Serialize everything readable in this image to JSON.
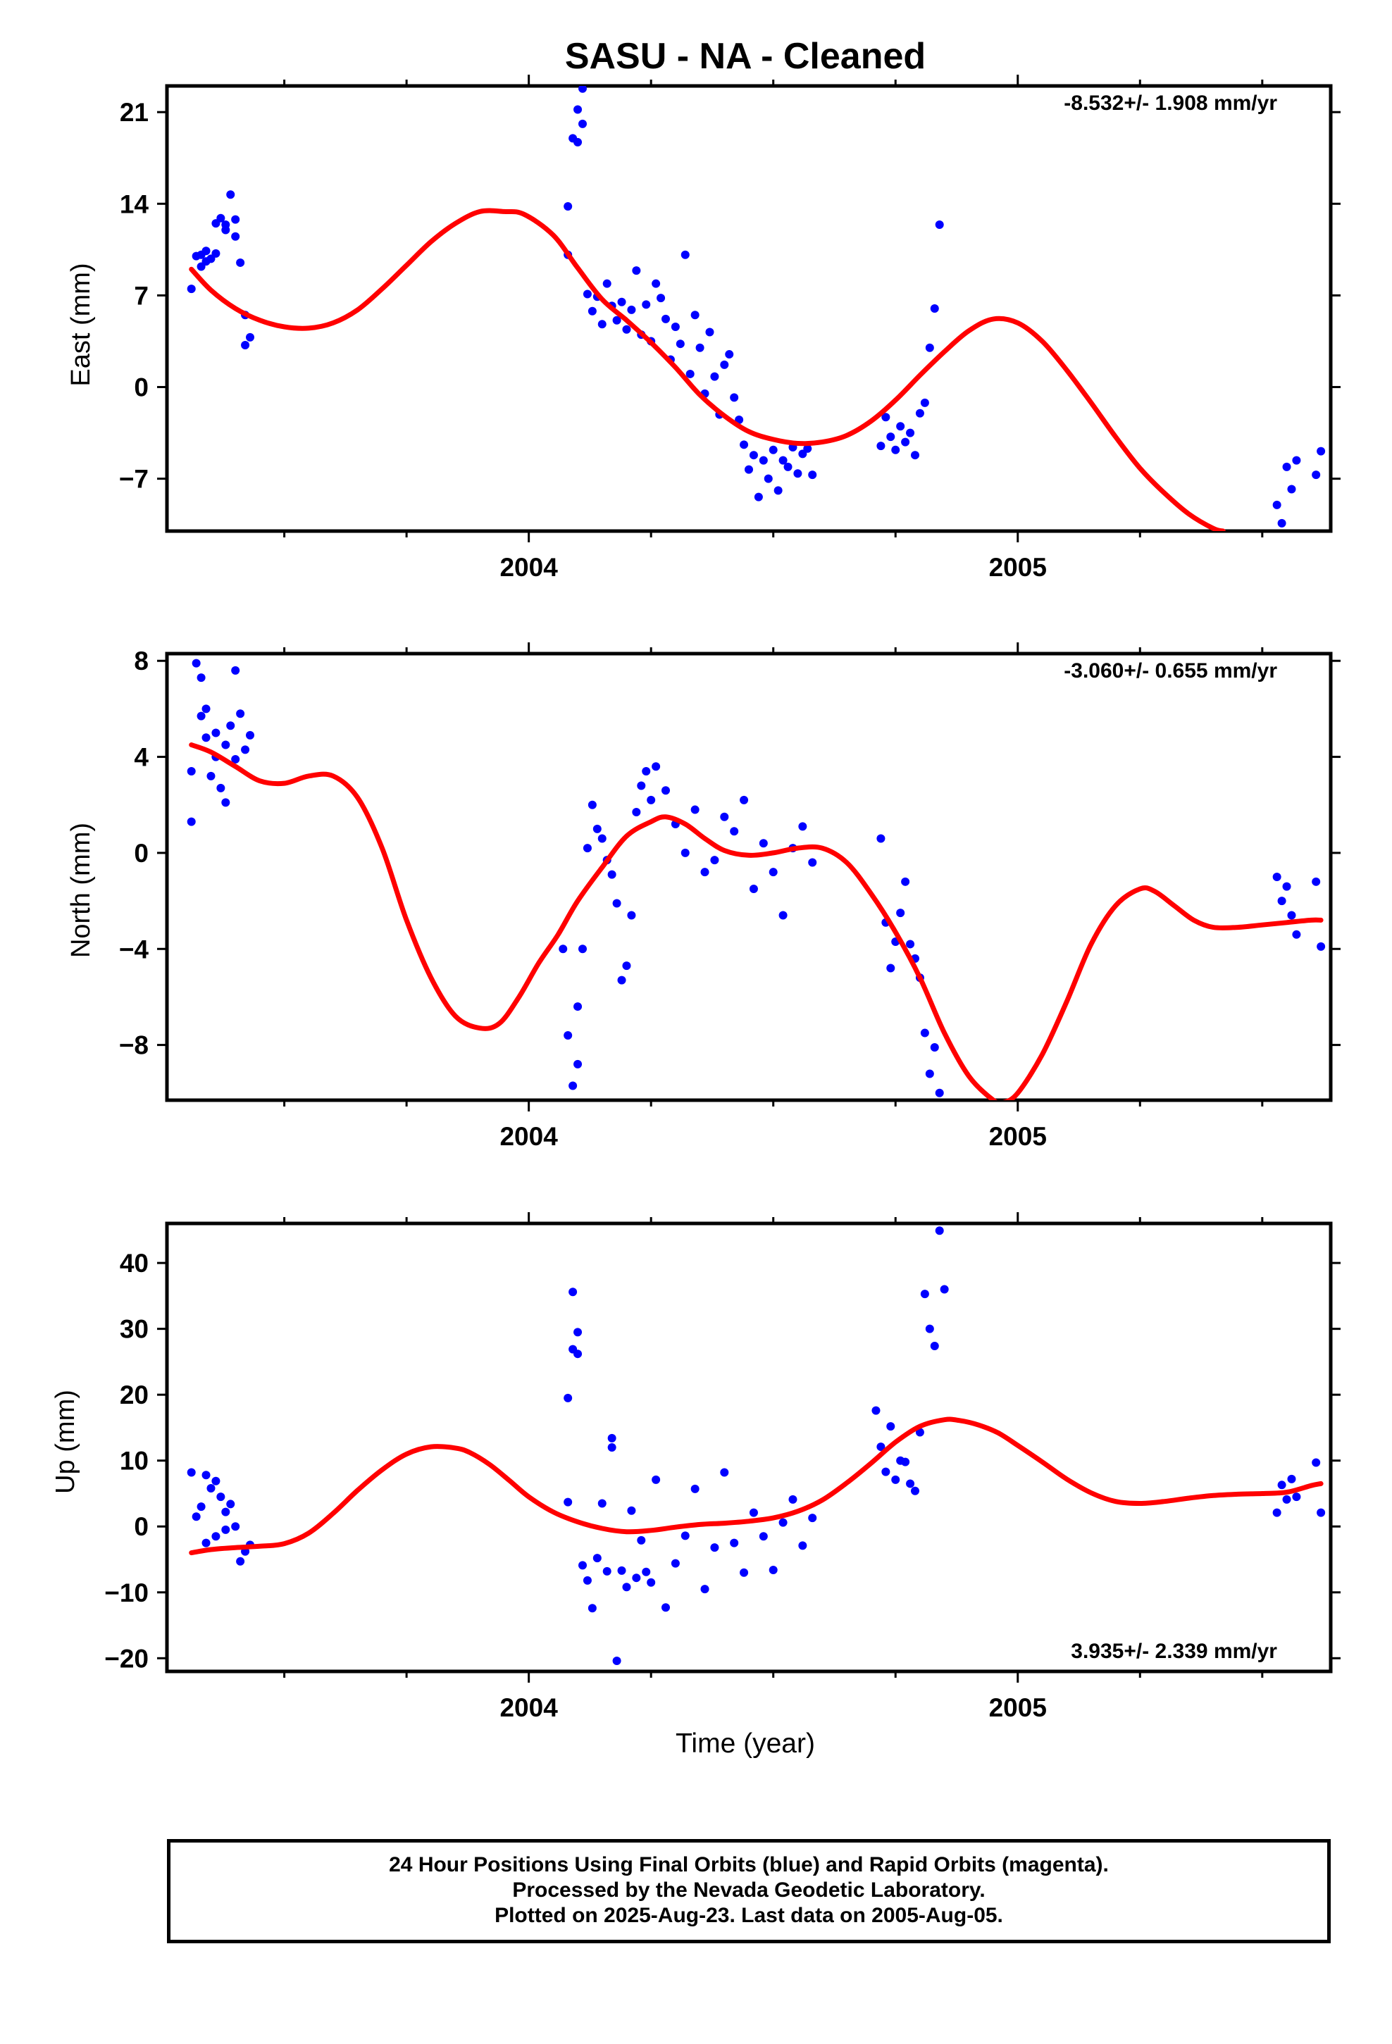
{
  "title": "SASU  - NA - Cleaned",
  "x_axis_label": "Time (year)",
  "footer": {
    "line1": "24 Hour Positions Using Final Orbits (blue) and Rapid Orbits (magenta).",
    "line2": "Processed by the Nevada Geodetic Laboratory.",
    "line3": "Plotted on 2025-Aug-23. Last data on 2005-Aug-05."
  },
  "colors": {
    "data": "#0000ff",
    "model": "#ff0000",
    "axes": "#000000"
  },
  "chart_data": [
    {
      "type": "scatter",
      "ylabel": "East (mm)",
      "rate": "-8.532+/- 1.908 mm/yr",
      "xlim": [
        2003.26,
        2005.64
      ],
      "ylim": [
        -11,
        23
      ],
      "yticks": [
        -7,
        0,
        7,
        14,
        21
      ],
      "xticks": [
        2004,
        2005
      ],
      "series": [
        {
          "role": "observations",
          "x": [
            2003.31,
            2003.32,
            2003.33,
            2003.33,
            2003.34,
            2003.34,
            2003.35,
            2003.36,
            2003.36,
            2003.37,
            2003.38,
            2003.38,
            2003.39,
            2003.4,
            2003.4,
            2003.41,
            2003.42,
            2003.42,
            2003.43,
            2004.08,
            2004.08,
            2004.09,
            2004.1,
            2004.1,
            2004.11,
            2004.11,
            2004.12,
            2004.13,
            2004.14,
            2004.15,
            2004.16,
            2004.17,
            2004.18,
            2004.19,
            2004.2,
            2004.21,
            2004.22,
            2004.23,
            2004.24,
            2004.25,
            2004.26,
            2004.27,
            2004.28,
            2004.29,
            2004.3,
            2004.31,
            2004.32,
            2004.33,
            2004.34,
            2004.35,
            2004.36,
            2004.37,
            2004.38,
            2004.39,
            2004.4,
            2004.41,
            2004.42,
            2004.43,
            2004.44,
            2004.45,
            2004.46,
            2004.47,
            2004.48,
            2004.49,
            2004.5,
            2004.51,
            2004.52,
            2004.53,
            2004.54,
            2004.55,
            2004.56,
            2004.57,
            2004.58,
            2004.72,
            2004.73,
            2004.74,
            2004.75,
            2004.76,
            2004.77,
            2004.78,
            2004.79,
            2004.8,
            2004.81,
            2004.82,
            2004.83,
            2004.84,
            2005.53,
            2005.54,
            2005.55,
            2005.56,
            2005.57,
            2005.61,
            2005.62
          ],
          "y": [
            7.5,
            10.0,
            9.2,
            10.1,
            9.6,
            10.4,
            9.8,
            12.5,
            10.2,
            12.9,
            12.0,
            12.4,
            14.7,
            11.5,
            12.8,
            9.5,
            5.5,
            3.2,
            3.8,
            13.8,
            10.1,
            19.0,
            21.2,
            18.7,
            20.1,
            22.8,
            7.1,
            5.8,
            6.9,
            4.8,
            7.9,
            6.2,
            5.1,
            6.5,
            4.4,
            5.9,
            8.9,
            4.0,
            6.3,
            3.5,
            7.9,
            6.8,
            5.2,
            2.1,
            4.6,
            3.3,
            10.1,
            1.0,
            5.5,
            3.0,
            -0.5,
            4.2,
            0.8,
            -2.1,
            1.7,
            2.5,
            -0.8,
            -2.5,
            -4.4,
            -6.3,
            -5.2,
            -8.4,
            -5.6,
            -7.0,
            -4.8,
            -7.9,
            -5.6,
            -6.1,
            -4.6,
            -6.6,
            -5.1,
            -4.7,
            -6.7,
            -4.5,
            -2.3,
            -3.8,
            -4.8,
            -3.0,
            -4.2,
            -3.5,
            -5.2,
            -2.0,
            -1.2,
            3.0,
            6.0,
            12.4,
            -9.0,
            -10.4,
            -6.1,
            -7.8,
            -5.6,
            -6.7,
            -4.9
          ]
        },
        {
          "role": "model",
          "x": [
            2003.31,
            2003.35,
            2003.4,
            2003.45,
            2003.5,
            2003.55,
            2003.6,
            2003.65,
            2003.7,
            2003.75,
            2003.8,
            2003.85,
            2003.9,
            2003.95,
            2003.99,
            2004.05,
            2004.1,
            2004.15,
            2004.2,
            2004.25,
            2004.3,
            2004.35,
            2004.4,
            2004.45,
            2004.5,
            2004.55,
            2004.6,
            2004.65,
            2004.7,
            2004.75,
            2004.8,
            2004.85,
            2004.9,
            2004.95,
            2005.0,
            2005.05,
            2005.1,
            2005.15,
            2005.2,
            2005.25,
            2005.3,
            2005.35,
            2005.4,
            2005.42
          ],
          "y": [
            9.0,
            7.4,
            6.0,
            5.1,
            4.6,
            4.5,
            4.9,
            5.9,
            7.5,
            9.3,
            11.1,
            12.5,
            13.4,
            13.4,
            13.2,
            11.6,
            9.1,
            6.7,
            5.1,
            3.4,
            1.5,
            -0.6,
            -2.2,
            -3.4,
            -4.0,
            -4.3,
            -4.2,
            -3.7,
            -2.6,
            -1.0,
            0.9,
            2.7,
            4.3,
            5.2,
            4.9,
            3.5,
            1.3,
            -1.2,
            -3.8,
            -6.2,
            -8.1,
            -9.7,
            -10.8,
            -11.0
          ]
        }
      ]
    },
    {
      "type": "scatter",
      "ylabel": "North (mm)",
      "rate": "-3.060+/- 0.655 mm/yr",
      "xlim": [
        2003.26,
        2005.64
      ],
      "ylim": [
        -10.3,
        8.3
      ],
      "yticks": [
        -8,
        -4,
        0,
        4,
        8
      ],
      "xticks": [
        2004,
        2005
      ],
      "series": [
        {
          "role": "observations",
          "x": [
            2003.31,
            2003.31,
            2003.32,
            2003.33,
            2003.33,
            2003.34,
            2003.34,
            2003.35,
            2003.36,
            2003.36,
            2003.37,
            2003.38,
            2003.38,
            2003.39,
            2003.4,
            2003.4,
            2003.41,
            2003.42,
            2003.43,
            2004.07,
            2004.08,
            2004.09,
            2004.1,
            2004.1,
            2004.11,
            2004.12,
            2004.13,
            2004.14,
            2004.15,
            2004.16,
            2004.17,
            2004.18,
            2004.19,
            2004.2,
            2004.21,
            2004.22,
            2004.23,
            2004.24,
            2004.25,
            2004.26,
            2004.28,
            2004.3,
            2004.32,
            2004.34,
            2004.36,
            2004.38,
            2004.4,
            2004.42,
            2004.44,
            2004.46,
            2004.48,
            2004.5,
            2004.52,
            2004.54,
            2004.56,
            2004.58,
            2004.72,
            2004.73,
            2004.74,
            2004.75,
            2004.76,
            2004.77,
            2004.78,
            2004.79,
            2004.8,
            2004.81,
            2004.82,
            2004.83,
            2004.84,
            2005.53,
            2005.54,
            2005.55,
            2005.56,
            2005.57,
            2005.61,
            2005.62
          ],
          "y": [
            3.4,
            1.3,
            7.9,
            5.7,
            7.3,
            4.8,
            6.0,
            3.2,
            5.0,
            4.0,
            2.7,
            2.1,
            4.5,
            5.3,
            3.9,
            7.6,
            5.8,
            4.3,
            4.9,
            -4.0,
            -7.6,
            -9.7,
            -8.8,
            -6.4,
            -4.0,
            0.2,
            2.0,
            1.0,
            0.6,
            -0.3,
            -0.9,
            -2.1,
            -5.3,
            -4.7,
            -2.6,
            1.7,
            2.8,
            3.4,
            2.2,
            3.6,
            2.6,
            1.2,
            0.0,
            1.8,
            -0.8,
            -0.3,
            1.5,
            0.9,
            2.2,
            -1.5,
            0.4,
            -0.8,
            -2.6,
            0.2,
            1.1,
            -0.4,
            0.6,
            -2.9,
            -4.8,
            -3.7,
            -2.5,
            -1.2,
            -3.8,
            -4.4,
            -5.2,
            -7.5,
            -9.2,
            -8.1,
            -10.0,
            -1.0,
            -2.0,
            -1.4,
            -2.6,
            -3.4,
            -1.2,
            -3.9
          ]
        },
        {
          "role": "model",
          "x": [
            2003.31,
            2003.35,
            2003.4,
            2003.45,
            2003.5,
            2003.55,
            2003.6,
            2003.65,
            2003.7,
            2003.75,
            2003.8,
            2003.85,
            2003.9,
            2003.94,
            2003.98,
            2004.02,
            2004.06,
            2004.1,
            2004.15,
            2004.2,
            2004.25,
            2004.28,
            2004.32,
            2004.36,
            2004.4,
            2004.45,
            2004.5,
            2004.55,
            2004.6,
            2004.65,
            2004.7,
            2004.75,
            2004.8,
            2004.85,
            2004.9,
            2004.95,
            2004.97,
            2005.0,
            2005.05,
            2005.1,
            2005.15,
            2005.2,
            2005.25,
            2005.28,
            2005.32,
            2005.36,
            2005.4,
            2005.45,
            2005.5,
            2005.55,
            2005.6,
            2005.62
          ],
          "y": [
            4.5,
            4.2,
            3.6,
            3.0,
            2.9,
            3.2,
            3.2,
            2.3,
            0.2,
            -2.8,
            -5.2,
            -6.8,
            -7.3,
            -7.1,
            -6.0,
            -4.6,
            -3.4,
            -2.0,
            -0.6,
            0.7,
            1.3,
            1.5,
            1.2,
            0.6,
            0.1,
            -0.1,
            0.0,
            0.2,
            0.2,
            -0.4,
            -1.7,
            -3.3,
            -5.2,
            -7.5,
            -9.3,
            -10.3,
            -10.4,
            -10.0,
            -8.4,
            -6.2,
            -3.8,
            -2.2,
            -1.5,
            -1.6,
            -2.2,
            -2.8,
            -3.1,
            -3.1,
            -3.0,
            -2.9,
            -2.8,
            -2.8
          ]
        }
      ]
    },
    {
      "type": "scatter",
      "ylabel": "Up (mm)",
      "rate": "3.935+/- 2.339 mm/yr",
      "xlim": [
        2003.26,
        2005.64
      ],
      "ylim": [
        -22,
        46
      ],
      "yticks": [
        -20,
        -10,
        0,
        10,
        20,
        30,
        40
      ],
      "xticks": [
        2004,
        2005
      ],
      "series": [
        {
          "role": "observations",
          "x": [
            2003.31,
            2003.32,
            2003.33,
            2003.34,
            2003.34,
            2003.35,
            2003.36,
            2003.36,
            2003.37,
            2003.38,
            2003.38,
            2003.39,
            2003.4,
            2003.41,
            2003.42,
            2003.43,
            2004.08,
            2004.08,
            2004.09,
            2004.09,
            2004.1,
            2004.1,
            2004.11,
            2004.12,
            2004.13,
            2004.14,
            2004.15,
            2004.16,
            2004.17,
            2004.17,
            2004.18,
            2004.19,
            2004.2,
            2004.21,
            2004.22,
            2004.23,
            2004.24,
            2004.25,
            2004.26,
            2004.28,
            2004.3,
            2004.32,
            2004.34,
            2004.36,
            2004.38,
            2004.4,
            2004.42,
            2004.44,
            2004.46,
            2004.48,
            2004.5,
            2004.52,
            2004.54,
            2004.56,
            2004.58,
            2004.71,
            2004.72,
            2004.73,
            2004.74,
            2004.75,
            2004.76,
            2004.77,
            2004.78,
            2004.79,
            2004.8,
            2004.81,
            2004.82,
            2004.83,
            2004.84,
            2004.85,
            2005.53,
            2005.54,
            2005.55,
            2005.56,
            2005.57,
            2005.61,
            2005.62
          ],
          "y": [
            8.2,
            1.5,
            3.0,
            -2.5,
            7.8,
            5.8,
            -1.5,
            6.9,
            4.5,
            -0.5,
            2.2,
            3.4,
            0.0,
            -5.3,
            -3.8,
            -2.8,
            3.7,
            19.5,
            35.6,
            26.9,
            29.5,
            26.2,
            -5.9,
            -8.2,
            -12.4,
            -4.8,
            3.5,
            -6.8,
            12.0,
            13.4,
            -20.4,
            -6.7,
            -9.2,
            2.4,
            -7.8,
            -2.1,
            -6.9,
            -8.5,
            7.1,
            -12.3,
            -5.6,
            -1.4,
            5.7,
            -9.5,
            -3.2,
            8.2,
            -2.5,
            -7.0,
            2.1,
            -1.5,
            -6.6,
            0.6,
            4.1,
            -2.9,
            1.3,
            17.6,
            12.1,
            8.3,
            15.2,
            7.1,
            10.0,
            9.8,
            6.5,
            5.4,
            14.3,
            35.3,
            30.0,
            27.4,
            44.9,
            36.0,
            2.1,
            6.3,
            4.1,
            7.2,
            4.5,
            9.7,
            2.1
          ]
        },
        {
          "role": "model",
          "x": [
            2003.31,
            2003.35,
            2003.4,
            2003.45,
            2003.5,
            2003.55,
            2003.6,
            2003.65,
            2003.7,
            2003.75,
            2003.8,
            2003.85,
            2003.88,
            2003.92,
            2003.96,
            2004.0,
            2004.05,
            2004.1,
            2004.15,
            2004.2,
            2004.25,
            2004.3,
            2004.35,
            2004.4,
            2004.45,
            2004.5,
            2004.55,
            2004.6,
            2004.65,
            2004.7,
            2004.75,
            2004.8,
            2004.85,
            2004.88,
            2004.92,
            2004.96,
            2005.0,
            2005.05,
            2005.1,
            2005.15,
            2005.2,
            2005.25,
            2005.3,
            2005.35,
            2005.4,
            2005.45,
            2005.5,
            2005.55,
            2005.6,
            2005.62
          ],
          "y": [
            -4.0,
            -3.5,
            -3.2,
            -3.0,
            -2.6,
            -1.0,
            2.0,
            5.5,
            8.6,
            11.0,
            12.1,
            11.9,
            11.2,
            9.4,
            7.0,
            4.5,
            2.2,
            0.7,
            -0.3,
            -0.8,
            -0.6,
            -0.1,
            0.3,
            0.5,
            0.8,
            1.3,
            2.3,
            4.0,
            6.6,
            9.6,
            12.8,
            15.2,
            16.2,
            16.1,
            15.4,
            14.2,
            12.3,
            9.8,
            7.2,
            5.1,
            3.8,
            3.5,
            3.8,
            4.3,
            4.7,
            4.9,
            5.0,
            5.2,
            6.2,
            6.5
          ]
        }
      ]
    }
  ]
}
